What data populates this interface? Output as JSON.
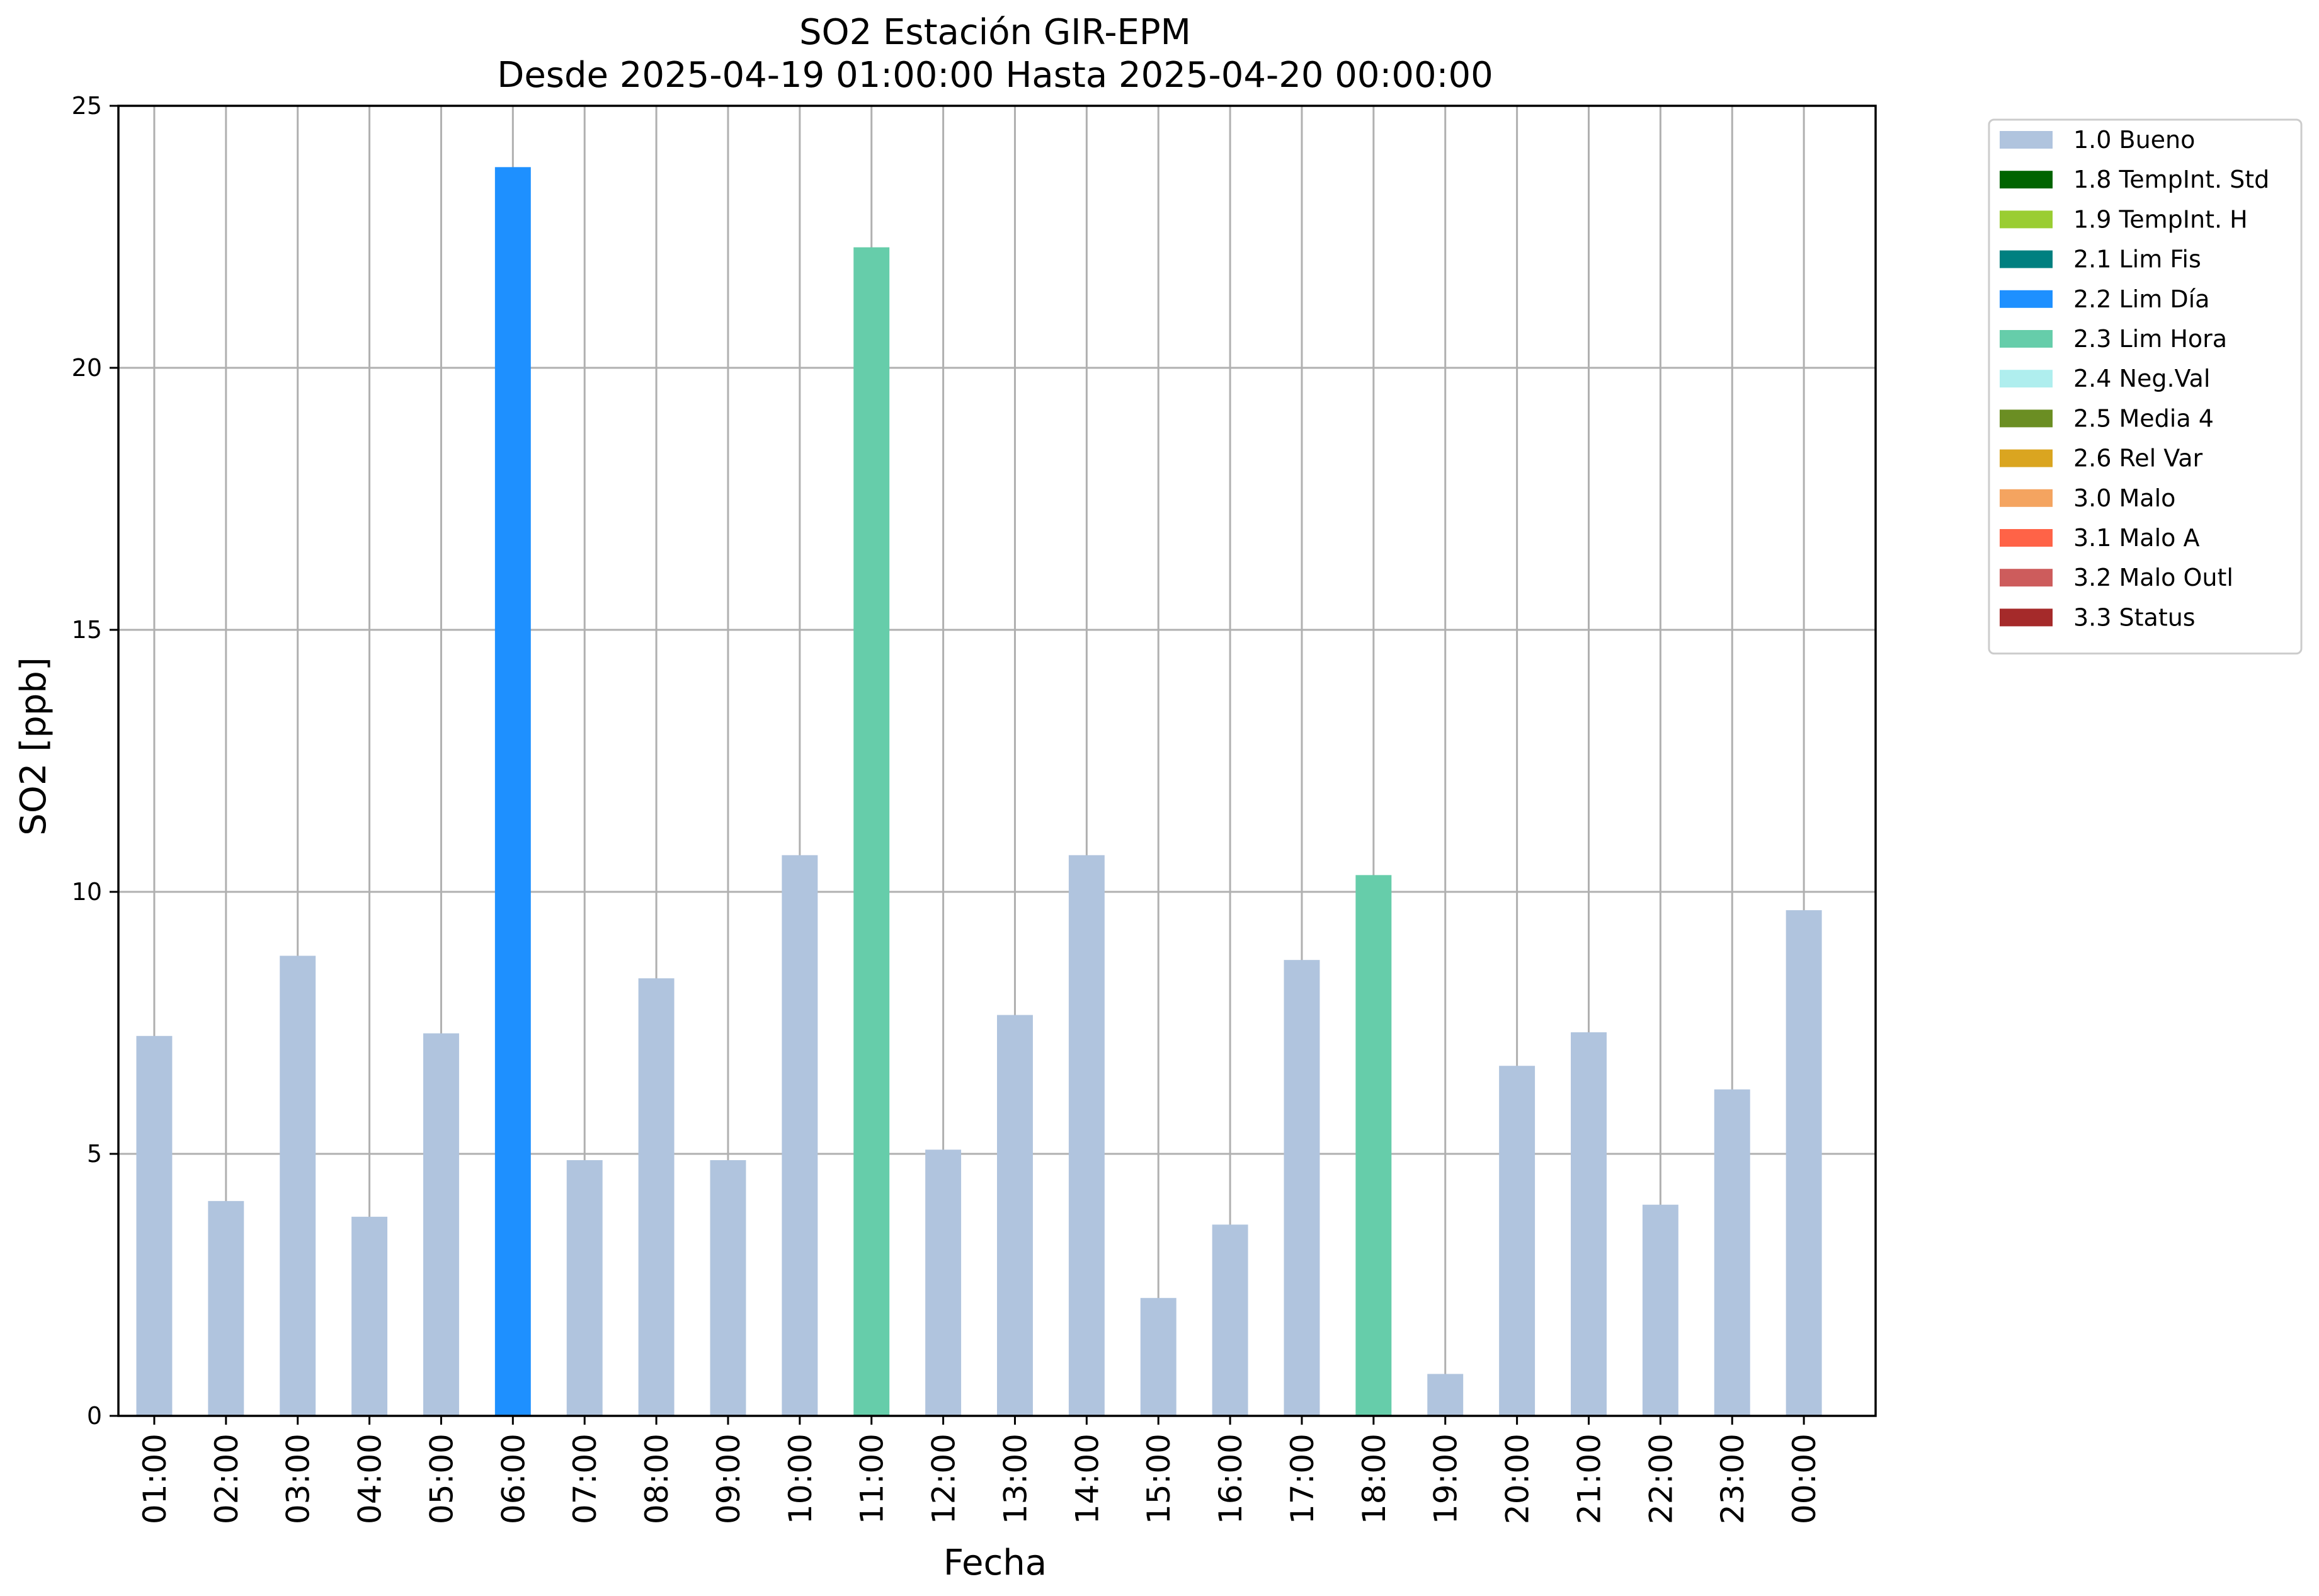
{
  "chart_data": {
    "type": "bar",
    "title": "SO2 Estación GIR-EPM",
    "subtitle": "Desde 2025-04-19 01:00:00 Hasta 2025-04-20 00:00:00",
    "xlabel": "Fecha",
    "ylabel": "SO2 [ppb]",
    "ylim": [
      0,
      25
    ],
    "yticks": [
      "0",
      "5",
      "10",
      "15",
      "20",
      "25"
    ],
    "grid": true,
    "legend_position": "outside-right-top",
    "categories": [
      "01:00",
      "02:00",
      "03:00",
      "04:00",
      "05:00",
      "06:00",
      "07:00",
      "08:00",
      "09:00",
      "10:00",
      "11:00",
      "12:00",
      "13:00",
      "14:00",
      "15:00",
      "16:00",
      "17:00",
      "18:00",
      "19:00",
      "20:00",
      "21:00",
      "22:00",
      "23:00",
      "00:00"
    ],
    "values": [
      7.25,
      4.1,
      8.78,
      3.8,
      7.3,
      23.83,
      4.88,
      8.35,
      4.88,
      10.7,
      22.3,
      5.08,
      7.65,
      10.7,
      2.25,
      3.65,
      8.7,
      10.32,
      0.8,
      6.68,
      7.32,
      4.03,
      6.23,
      9.65
    ],
    "flags": [
      "1.0 Bueno",
      "1.0 Bueno",
      "1.0 Bueno",
      "1.0 Bueno",
      "1.0 Bueno",
      "2.2 Lim Día",
      "1.0 Bueno",
      "1.0 Bueno",
      "1.0 Bueno",
      "1.0 Bueno",
      "2.3 Lim Hora",
      "1.0 Bueno",
      "1.0 Bueno",
      "1.0 Bueno",
      "1.0 Bueno",
      "1.0 Bueno",
      "1.0 Bueno",
      "2.3 Lim Hora",
      "1.0 Bueno",
      "1.0 Bueno",
      "1.0 Bueno",
      "1.0 Bueno",
      "1.0 Bueno",
      "1.0 Bueno"
    ],
    "legend": [
      {
        "label": "1.0 Bueno",
        "color": "#b0c4de"
      },
      {
        "label": "1.8 TempInt. Std",
        "color": "#006400"
      },
      {
        "label": "1.9 TempInt. H",
        "color": "#9acd32"
      },
      {
        "label": "2.1 Lim Fis",
        "color": "#008080"
      },
      {
        "label": "2.2 Lim Día",
        "color": "#1e90ff"
      },
      {
        "label": "2.3 Lim Hora",
        "color": "#66cdaa"
      },
      {
        "label": "2.4 Neg.Val",
        "color": "#afeeee"
      },
      {
        "label": "2.5 Media 4",
        "color": "#6b8e23"
      },
      {
        "label": "2.6 Rel Var",
        "color": "#daa520"
      },
      {
        "label": "3.0 Malo",
        "color": "#f4a460"
      },
      {
        "label": "3.1 Malo A",
        "color": "#ff6347"
      },
      {
        "label": "3.2 Malo Outl",
        "color": "#cd5c5c"
      },
      {
        "label": "3.3 Status",
        "color": "#a52a2a"
      }
    ]
  }
}
